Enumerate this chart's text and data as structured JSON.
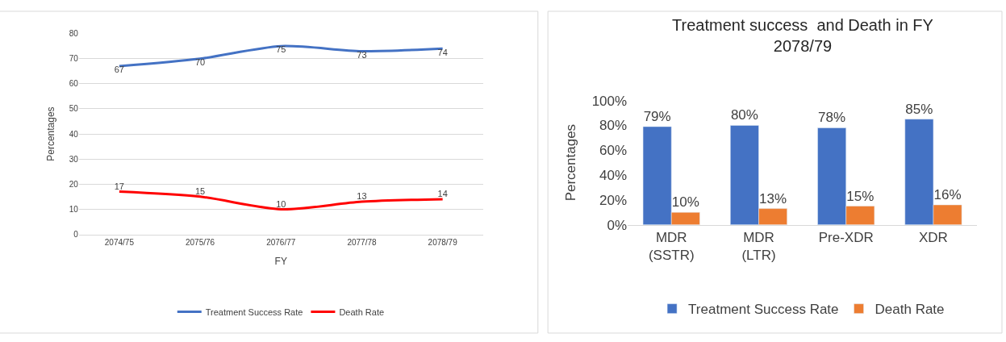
{
  "chart_data": [
    {
      "type": "line",
      "xlabel": "FY",
      "ylabel": "Percentages",
      "categories": [
        "2074/75",
        "2075/76",
        "2076/77",
        "2077/78",
        "2078/79"
      ],
      "series": [
        {
          "name": "Treatment Success Rate",
          "color": "#4472c4",
          "values": [
            67,
            70,
            75,
            73,
            74
          ]
        },
        {
          "name": "Death Rate",
          "color": "#ff0000",
          "values": [
            17,
            15,
            10,
            13,
            14
          ]
        }
      ],
      "ylim": [
        0,
        80
      ],
      "yticks": [
        0,
        10,
        20,
        30,
        40,
        50,
        60,
        70,
        80
      ],
      "grid": "y",
      "legend": "bottom",
      "data_labels": true,
      "marker": "none",
      "line_style": "solid"
    },
    {
      "type": "bar",
      "title": "Treatment success  and Death in FY 2078/79",
      "ylabel": "Percentages",
      "categories": [
        "MDR (SSTR)",
        "MDR (LTR)",
        "Pre-XDR",
        "XDR"
      ],
      "series": [
        {
          "name": "Treatment Success Rate",
          "color": "#4472c4",
          "values": [
            79,
            80,
            78,
            85
          ],
          "value_labels": [
            "79%",
            "80%",
            "78%",
            "85%"
          ]
        },
        {
          "name": "Death Rate",
          "color": "#ed7d31",
          "values": [
            10,
            13,
            15,
            16
          ],
          "value_labels": [
            "10%",
            "13%",
            "15%",
            "16%"
          ]
        }
      ],
      "ylim": [
        0,
        100
      ],
      "yticks": [
        {
          "value": 0,
          "label": "0%"
        },
        {
          "value": 20,
          "label": "20%"
        },
        {
          "value": 40,
          "label": "40%"
        },
        {
          "value": 60,
          "label": "60%"
        },
        {
          "value": 80,
          "label": "80%"
        },
        {
          "value": 100,
          "label": "100%"
        }
      ],
      "grid": false,
      "legend": "bottom"
    }
  ]
}
